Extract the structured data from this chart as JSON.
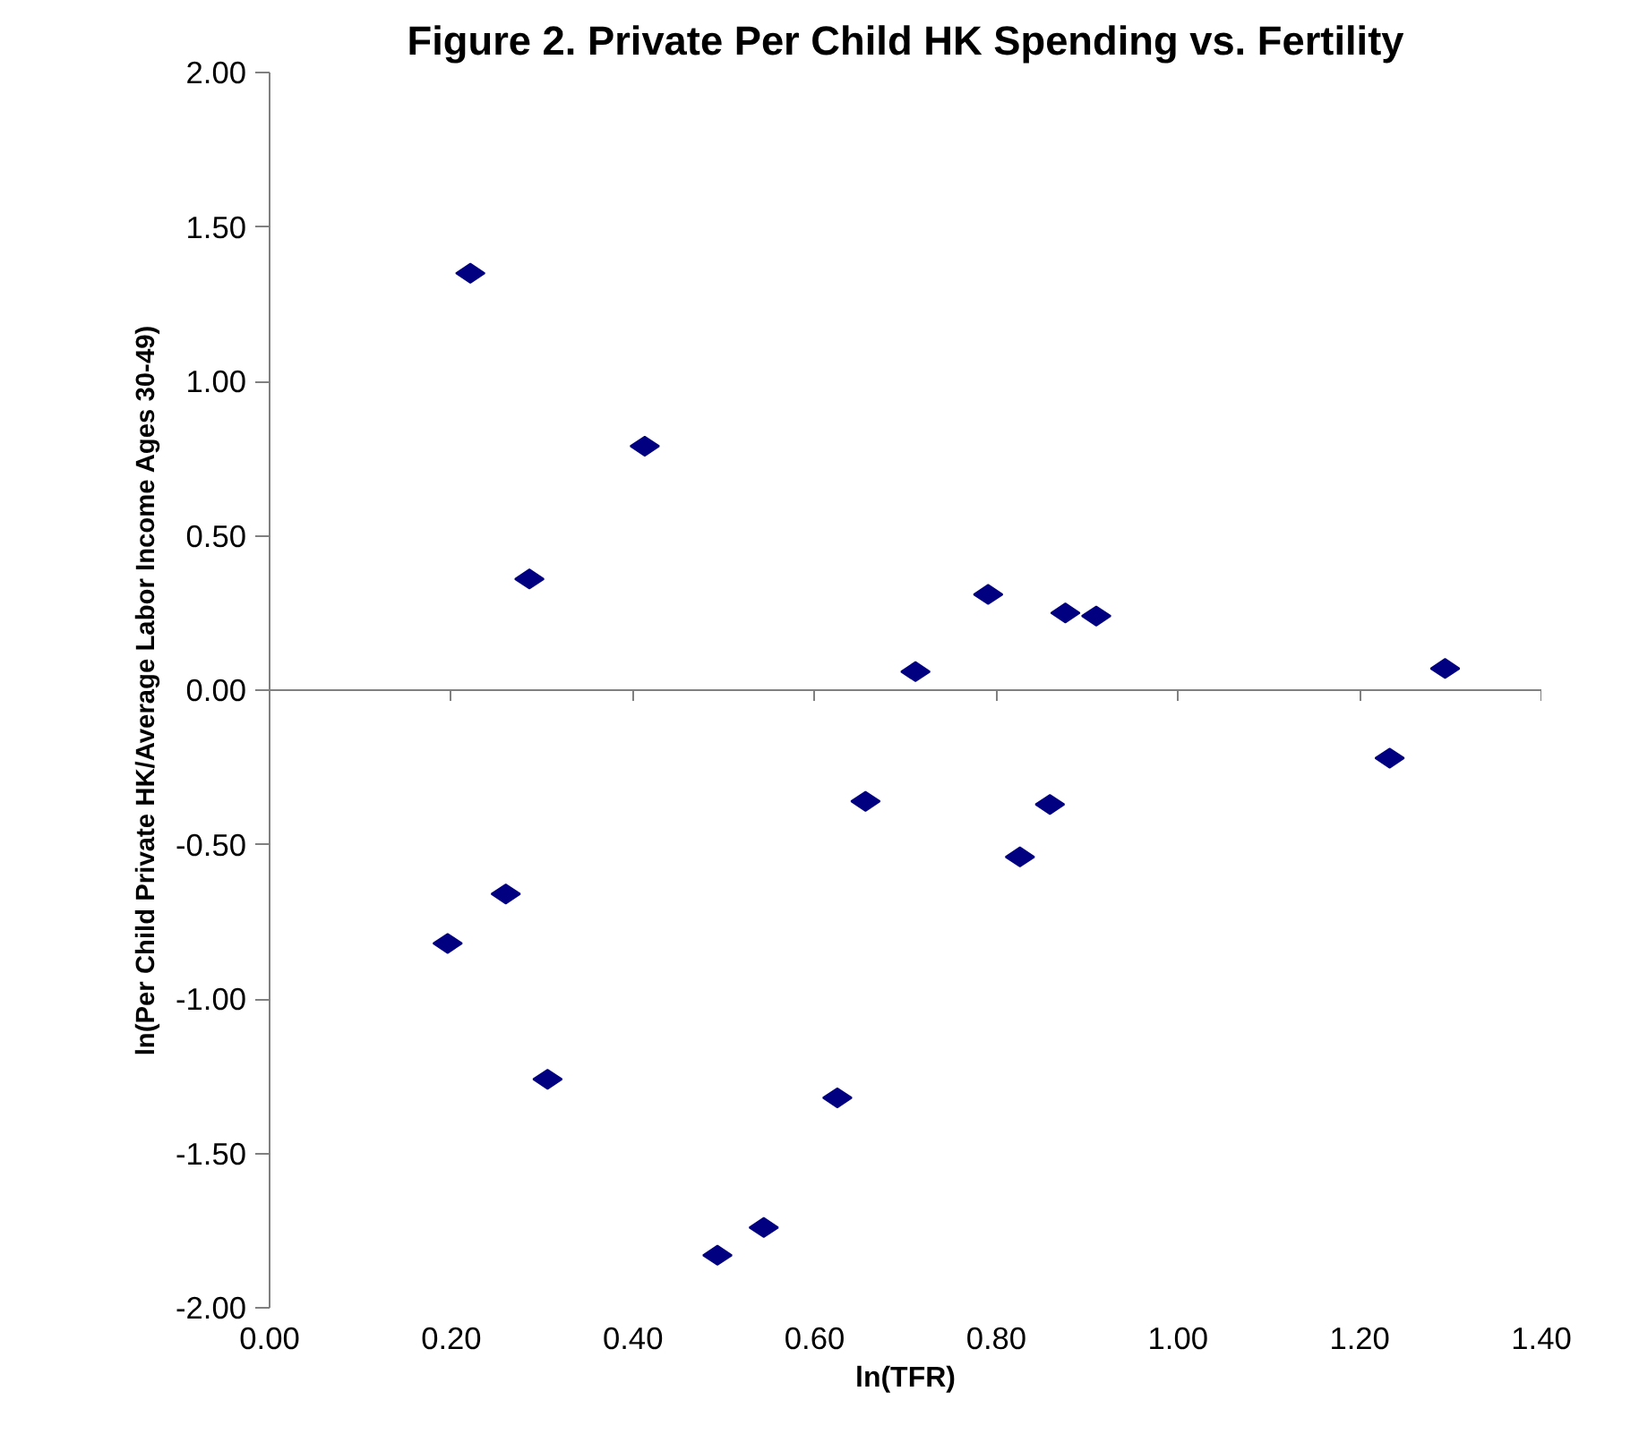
{
  "chart_data": {
    "type": "scatter",
    "title": "Figure 2. Private Per Child HK Spending vs. Fertility",
    "xlabel": "ln(TFR)",
    "ylabel": "ln(Per Child Private HK/Average Labor Income Ages 30-49)",
    "x": [
      0.221,
      0.286,
      0.413,
      0.196,
      0.26,
      0.306,
      0.493,
      0.544,
      0.625,
      0.656,
      0.711,
      0.791,
      0.876,
      0.91,
      1.294,
      1.233,
      0.859,
      0.826
    ],
    "values": [
      1.35,
      0.36,
      0.79,
      -0.82,
      -0.66,
      -1.26,
      -1.83,
      -1.74,
      -1.32,
      -0.36,
      0.06,
      0.31,
      0.25,
      0.24,
      0.07,
      -0.22,
      -0.37,
      -0.54
    ],
    "color": "#000080",
    "marker": "diamond",
    "xlim": [
      0,
      1.4
    ],
    "ylim": [
      -2,
      2
    ],
    "xticks": [
      {
        "value": 0,
        "label": "0.00"
      },
      {
        "value": 0.2,
        "label": "0.20"
      },
      {
        "value": 0.4,
        "label": "0.40"
      },
      {
        "value": 0.6,
        "label": "0.60"
      },
      {
        "value": 0.8,
        "label": "0.80"
      },
      {
        "value": 1.0,
        "label": "1.00"
      },
      {
        "value": 1.2,
        "label": "1.20"
      },
      {
        "value": 1.4,
        "label": "1.40"
      }
    ],
    "yticks": [
      {
        "value": -2,
        "label": "-2.00"
      },
      {
        "value": -1.5,
        "label": "-1.50"
      },
      {
        "value": -1,
        "label": "-1.00"
      },
      {
        "value": -0.5,
        "label": "-0.50"
      },
      {
        "value": 0,
        "label": "0.00"
      },
      {
        "value": 0.5,
        "label": "0.50"
      },
      {
        "value": 1,
        "label": "1.00"
      },
      {
        "value": 1.5,
        "label": "1.50"
      },
      {
        "value": 2,
        "label": "2.00"
      }
    ]
  }
}
